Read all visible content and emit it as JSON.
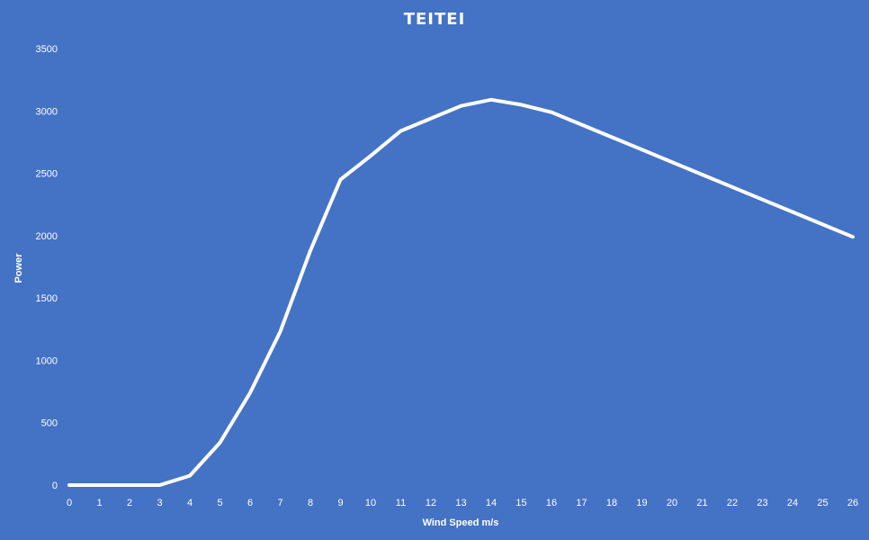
{
  "chart_data": {
    "type": "line",
    "title": "TEITEI",
    "xlabel": "Wind Speed m/s",
    "ylabel": "Power",
    "x": [
      0,
      1,
      2,
      3,
      4,
      5,
      6,
      7,
      8,
      9,
      10,
      11,
      12,
      13,
      14,
      15,
      16,
      17,
      18,
      19,
      20,
      21,
      22,
      23,
      24,
      25,
      26
    ],
    "series": [
      {
        "values": [
          0,
          0,
          0,
          0,
          75,
          340,
          740,
          1230,
          1880,
          2450,
          2640,
          2840,
          2940,
          3040,
          3090,
          3050,
          2990,
          2890,
          2790,
          2690,
          2590,
          2490,
          2390,
          2290,
          2190,
          2090,
          1990
        ]
      }
    ],
    "xlim": [
      0,
      26
    ],
    "ylim": [
      0,
      3500
    ],
    "x_ticks": [
      0,
      1,
      2,
      3,
      4,
      5,
      6,
      7,
      8,
      9,
      10,
      11,
      12,
      13,
      14,
      15,
      16,
      17,
      18,
      19,
      20,
      21,
      22,
      23,
      24,
      25,
      26
    ],
    "y_ticks": [
      0,
      500,
      1000,
      1500,
      2000,
      2500,
      3000,
      3500
    ],
    "grid": false,
    "drop_lines": true,
    "legend": "none",
    "colors": {
      "background": "#4472C4",
      "line": "#FFFFFF",
      "text": "#FFFFFF"
    }
  }
}
